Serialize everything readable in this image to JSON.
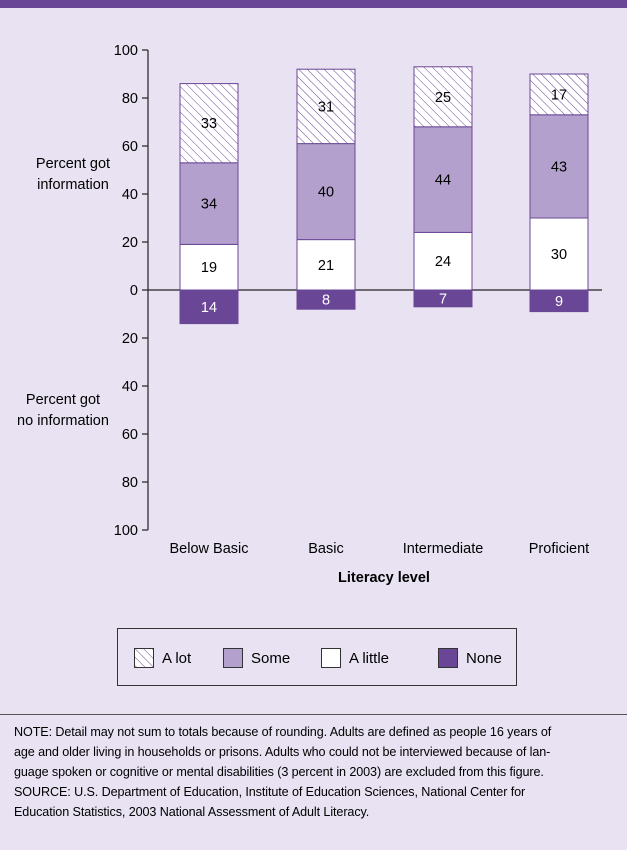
{
  "chart_data": {
    "type": "bar",
    "stacked": true,
    "categories": [
      "Below Basic",
      "Basic",
      "Intermediate",
      "Proficient"
    ],
    "xlabel": "Literacy level",
    "ylabel_top": "Percent got information",
    "ylabel_bottom": "Percent got no information",
    "ylim": [
      -100,
      100
    ],
    "yticks": [
      100,
      80,
      60,
      40,
      20,
      0,
      20,
      40,
      60,
      80,
      100
    ],
    "yticks_values": [
      100,
      80,
      60,
      40,
      20,
      0,
      -20,
      -40,
      -60,
      -80,
      -100
    ],
    "series": [
      {
        "name": "A little",
        "values": [
          19,
          21,
          24,
          30
        ],
        "color": "#ffffff",
        "pattern": "none"
      },
      {
        "name": "Some",
        "values": [
          34,
          40,
          44,
          43
        ],
        "color": "#b3a0cc",
        "pattern": "none"
      },
      {
        "name": "A lot",
        "values": [
          33,
          31,
          25,
          17
        ],
        "color": "#ffffff",
        "pattern": "hatch"
      },
      {
        "name": "None",
        "values": [
          14,
          8,
          7,
          9
        ],
        "color": "#6a4796",
        "pattern": "none",
        "negative": true
      }
    ],
    "legend": {
      "placement": "bottom",
      "entries": [
        {
          "label": "A lot",
          "color": "#ffffff",
          "pattern": "hatch"
        },
        {
          "label": "Some",
          "color": "#b3a0cc",
          "pattern": "none"
        },
        {
          "label": "A little",
          "color": "#ffffff",
          "pattern": "none"
        },
        {
          "label": "None",
          "color": "#6a4796",
          "pattern": "none"
        }
      ]
    }
  },
  "notes": {
    "line1": "NOTE: Detail may not sum to totals because of rounding. Adults are defined as people 16 years of",
    "line2": "age and older living in households or prisons. Adults who could not be interviewed because of lan-",
    "line3": "guage spoken or cognitive or mental disabilities (3 percent in 2003) are excluded from this figure.",
    "line4": "SOURCE: U.S. Department of Education, Institute of Education Sciences, National Center for",
    "line5": "Education Statistics, 2003 National Assessment of Adult Literacy."
  },
  "colors": {
    "accent": "#6a4796",
    "background": "#e8e2f2",
    "some": "#b3a0cc"
  }
}
